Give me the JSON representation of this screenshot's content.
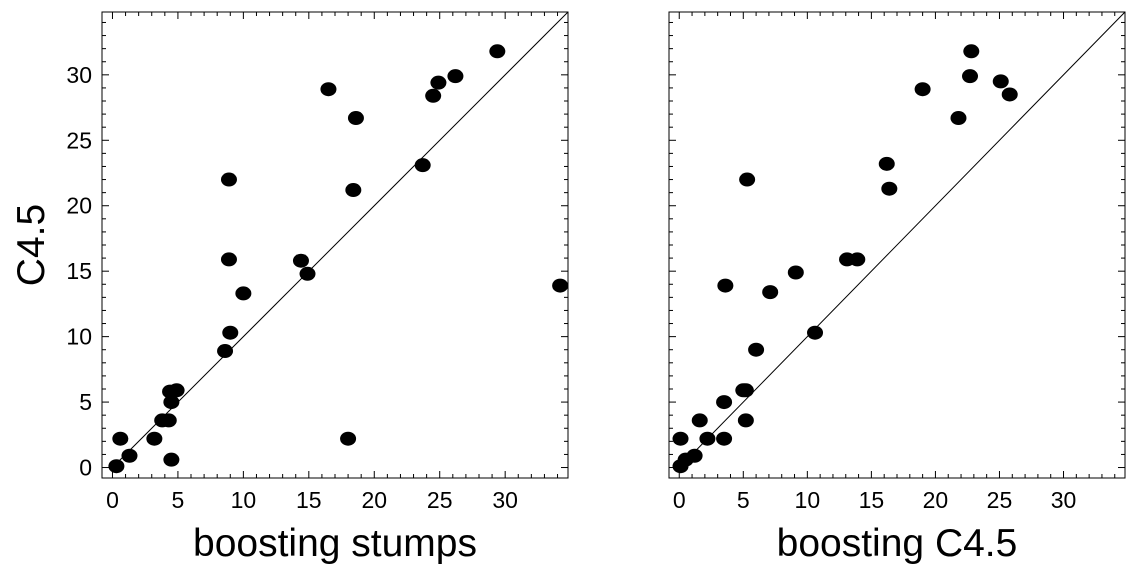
{
  "chart_data": [
    {
      "type": "scatter",
      "xlabel": "boosting stumps",
      "ylabel": "C4.5",
      "xlim": [
        -0.8,
        34.8
      ],
      "ylim": [
        -0.8,
        34.8
      ],
      "xticks": [
        0,
        5,
        10,
        15,
        20,
        25,
        30
      ],
      "yticks": [
        0,
        5,
        10,
        15,
        20,
        25,
        30
      ],
      "diagonal": true,
      "grid": false,
      "colors": {
        "marker": "#000000",
        "diagonal": "#000000"
      },
      "points": [
        {
          "x": 0.3,
          "y": 0.1
        },
        {
          "x": 0.6,
          "y": 2.2
        },
        {
          "x": 1.3,
          "y": 0.9
        },
        {
          "x": 3.2,
          "y": 2.2
        },
        {
          "x": 3.8,
          "y": 3.6
        },
        {
          "x": 4.3,
          "y": 3.6
        },
        {
          "x": 4.4,
          "y": 5.8
        },
        {
          "x": 4.5,
          "y": 5.0
        },
        {
          "x": 4.5,
          "y": 0.6
        },
        {
          "x": 4.9,
          "y": 5.9
        },
        {
          "x": 8.6,
          "y": 8.9
        },
        {
          "x": 8.9,
          "y": 15.9
        },
        {
          "x": 8.9,
          "y": 22.0
        },
        {
          "x": 9.0,
          "y": 10.3
        },
        {
          "x": 10.0,
          "y": 13.3
        },
        {
          "x": 14.4,
          "y": 15.8
        },
        {
          "x": 14.9,
          "y": 14.8
        },
        {
          "x": 16.5,
          "y": 28.9
        },
        {
          "x": 18.0,
          "y": 2.2
        },
        {
          "x": 18.4,
          "y": 21.2
        },
        {
          "x": 18.6,
          "y": 26.7
        },
        {
          "x": 23.7,
          "y": 23.1
        },
        {
          "x": 24.5,
          "y": 28.4
        },
        {
          "x": 24.9,
          "y": 29.4
        },
        {
          "x": 26.2,
          "y": 29.9
        },
        {
          "x": 29.4,
          "y": 31.8
        },
        {
          "x": 34.2,
          "y": 13.9
        }
      ]
    },
    {
      "type": "scatter",
      "xlabel": "boosting C4.5",
      "ylabel": "",
      "xlim": [
        -0.8,
        34.8
      ],
      "ylim": [
        -0.8,
        34.8
      ],
      "xticks": [
        0,
        5,
        10,
        15,
        20,
        25,
        30
      ],
      "yticks": [
        0,
        5,
        10,
        15,
        20,
        25,
        30
      ],
      "diagonal": true,
      "grid": false,
      "colors": {
        "marker": "#000000",
        "diagonal": "#000000"
      },
      "points": [
        {
          "x": 0.1,
          "y": 0.1
        },
        {
          "x": 0.1,
          "y": 2.2
        },
        {
          "x": 0.5,
          "y": 0.6
        },
        {
          "x": 1.2,
          "y": 0.9
        },
        {
          "x": 1.6,
          "y": 3.6
        },
        {
          "x": 2.2,
          "y": 2.2
        },
        {
          "x": 3.5,
          "y": 2.2
        },
        {
          "x": 3.5,
          "y": 5.0
        },
        {
          "x": 3.6,
          "y": 13.9
        },
        {
          "x": 5.0,
          "y": 5.9
        },
        {
          "x": 5.2,
          "y": 5.9
        },
        {
          "x": 5.2,
          "y": 3.6
        },
        {
          "x": 5.3,
          "y": 22.0
        },
        {
          "x": 6.0,
          "y": 9.0
        },
        {
          "x": 7.1,
          "y": 13.4
        },
        {
          "x": 9.1,
          "y": 14.9
        },
        {
          "x": 10.6,
          "y": 10.3
        },
        {
          "x": 13.1,
          "y": 15.9
        },
        {
          "x": 13.9,
          "y": 15.9
        },
        {
          "x": 16.2,
          "y": 23.2
        },
        {
          "x": 16.4,
          "y": 21.3
        },
        {
          "x": 19.0,
          "y": 28.9
        },
        {
          "x": 21.8,
          "y": 26.7
        },
        {
          "x": 22.8,
          "y": 31.8
        },
        {
          "x": 22.7,
          "y": 29.9
        },
        {
          "x": 25.1,
          "y": 29.5
        },
        {
          "x": 25.8,
          "y": 28.5
        }
      ]
    }
  ]
}
